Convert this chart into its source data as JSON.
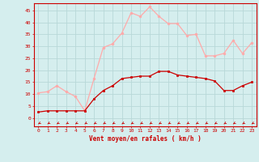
{
  "hours": [
    0,
    1,
    2,
    3,
    4,
    5,
    6,
    7,
    8,
    9,
    10,
    11,
    12,
    13,
    14,
    15,
    16,
    17,
    18,
    19,
    20,
    21,
    22,
    23
  ],
  "wind_avg": [
    2.5,
    3,
    3,
    3,
    3,
    3,
    8,
    11.5,
    13.5,
    16.5,
    17,
    17.5,
    17.5,
    19.5,
    19.5,
    18,
    17.5,
    17,
    16.5,
    15.5,
    11.5,
    11.5,
    13.5,
    15
  ],
  "wind_gust": [
    10.5,
    11,
    13.5,
    11,
    9,
    3,
    16.5,
    29.5,
    31,
    35.5,
    44,
    42.5,
    46.5,
    42.5,
    39.5,
    39.5,
    34.5,
    35,
    26,
    26,
    27,
    32.5,
    27,
    31.5
  ],
  "avg_color": "#cc0000",
  "gust_color": "#ffaaaa",
  "bg_color": "#d5eeee",
  "grid_color": "#b8d8d8",
  "text_color": "#cc0000",
  "xlabel": "Vent moyen/en rafales ( km/h )",
  "yticks": [
    0,
    5,
    10,
    15,
    20,
    25,
    30,
    35,
    40,
    45
  ],
  "ylim": [
    -3.5,
    48
  ],
  "xlim": [
    -0.5,
    23.5
  ]
}
